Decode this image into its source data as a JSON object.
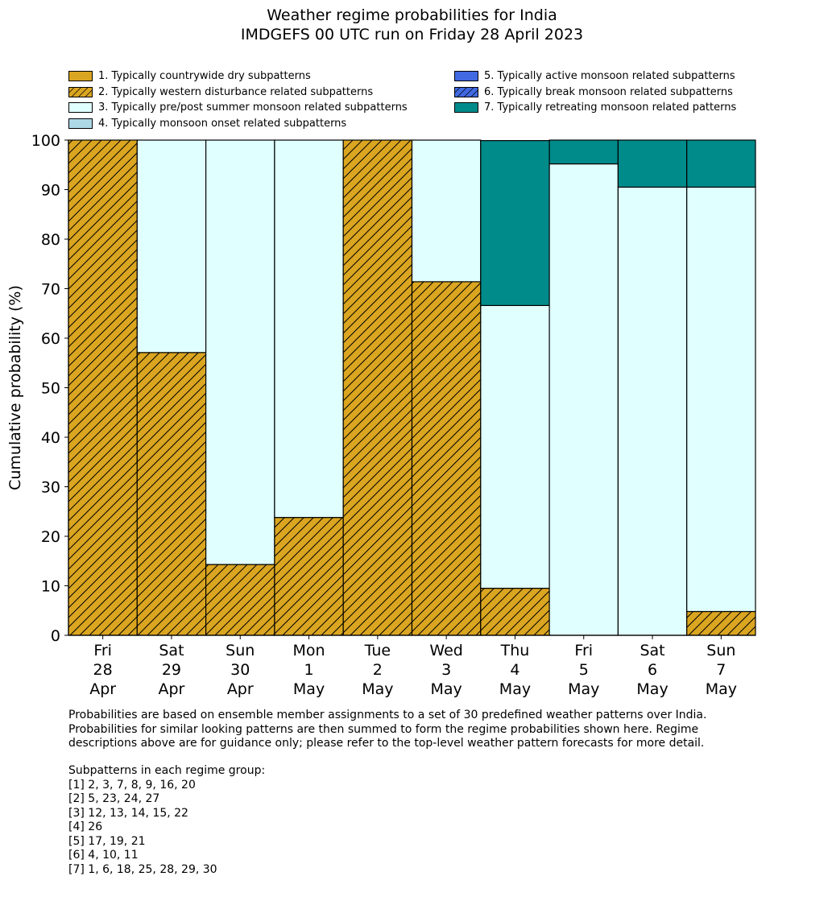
{
  "chart_data": {
    "type": "bar",
    "stacked": true,
    "title": "Weather regime probabilities for India",
    "subtitle": "IMDGEFS 00 UTC run on Friday 28 April 2023",
    "ylabel": "Cumulative probability (%)",
    "ylim": [
      0,
      100
    ],
    "yticks": [
      0,
      10,
      20,
      30,
      40,
      50,
      60,
      70,
      80,
      90,
      100
    ],
    "grid": false,
    "legend_position": "top",
    "categories": [
      [
        "Fri",
        "28",
        "Apr"
      ],
      [
        "Sat",
        "29",
        "Apr"
      ],
      [
        "Sun",
        "30",
        "Apr"
      ],
      [
        "Mon",
        "1",
        "May"
      ],
      [
        "Tue",
        "2",
        "May"
      ],
      [
        "Wed",
        "3",
        "May"
      ],
      [
        "Thu",
        "4",
        "May"
      ],
      [
        "Fri",
        "5",
        "May"
      ],
      [
        "Sat",
        "6",
        "May"
      ],
      [
        "Sun",
        "7",
        "May"
      ]
    ],
    "series": [
      {
        "name": "1. Typically countrywide dry subpatterns",
        "color": "#DAA520",
        "hatch": false,
        "values": [
          0,
          0,
          0,
          0,
          0,
          0,
          0,
          0,
          0,
          0
        ]
      },
      {
        "name": "2. Typically western disturbance related subpatterns",
        "color": "#DAA520",
        "hatch": true,
        "values": [
          100,
          57.1,
          14.3,
          23.8,
          100,
          71.4,
          9.5,
          0,
          0,
          4.8
        ]
      },
      {
        "name": "3. Typically pre/post summer monsoon related subpatterns",
        "color": "#E0FFFF",
        "hatch": false,
        "values": [
          0,
          42.9,
          85.7,
          76.2,
          0,
          28.6,
          57.1,
          95.2,
          90.5,
          85.7
        ]
      },
      {
        "name": "4. Typically monsoon onset related subpatterns",
        "color": "#ADD8E6",
        "hatch": false,
        "values": [
          0,
          0,
          0,
          0,
          0,
          0,
          0,
          0,
          0,
          0
        ]
      },
      {
        "name": "5. Typically active monsoon related subpatterns",
        "color": "#4169E1",
        "hatch": false,
        "values": [
          0,
          0,
          0,
          0,
          0,
          0,
          0,
          0,
          0,
          0
        ]
      },
      {
        "name": "6. Typically break monsoon related subpatterns",
        "color": "#4169E1",
        "hatch": true,
        "values": [
          0,
          0,
          0,
          0,
          0,
          0,
          0,
          0,
          0,
          0
        ]
      },
      {
        "name": "7. Typically retreating monsoon related patterns",
        "color": "#008B8B",
        "hatch": false,
        "values": [
          0,
          0,
          0,
          0,
          0,
          0,
          33.3,
          4.8,
          9.5,
          9.5
        ]
      }
    ]
  },
  "notes": {
    "description": "Probabilities are based on ensemble member assignments to a set of 30 predefined weather patterns over India.\nProbabilities for similar looking patterns are then summed to form the regime probabilities shown here. Regime\ndescriptions above are for guidance only; please refer to the top-level weather pattern forecasts for more detail.",
    "groups": "Subpatterns in each regime group:\n[1] 2, 3, 7, 8, 9, 16, 20\n[2] 5, 23, 24, 27\n[3] 12, 13, 14, 15, 22\n[4] 26\n[5] 17, 19, 21\n[6] 4, 10, 11\n[7] 1, 6, 18, 25, 28, 29, 30"
  }
}
